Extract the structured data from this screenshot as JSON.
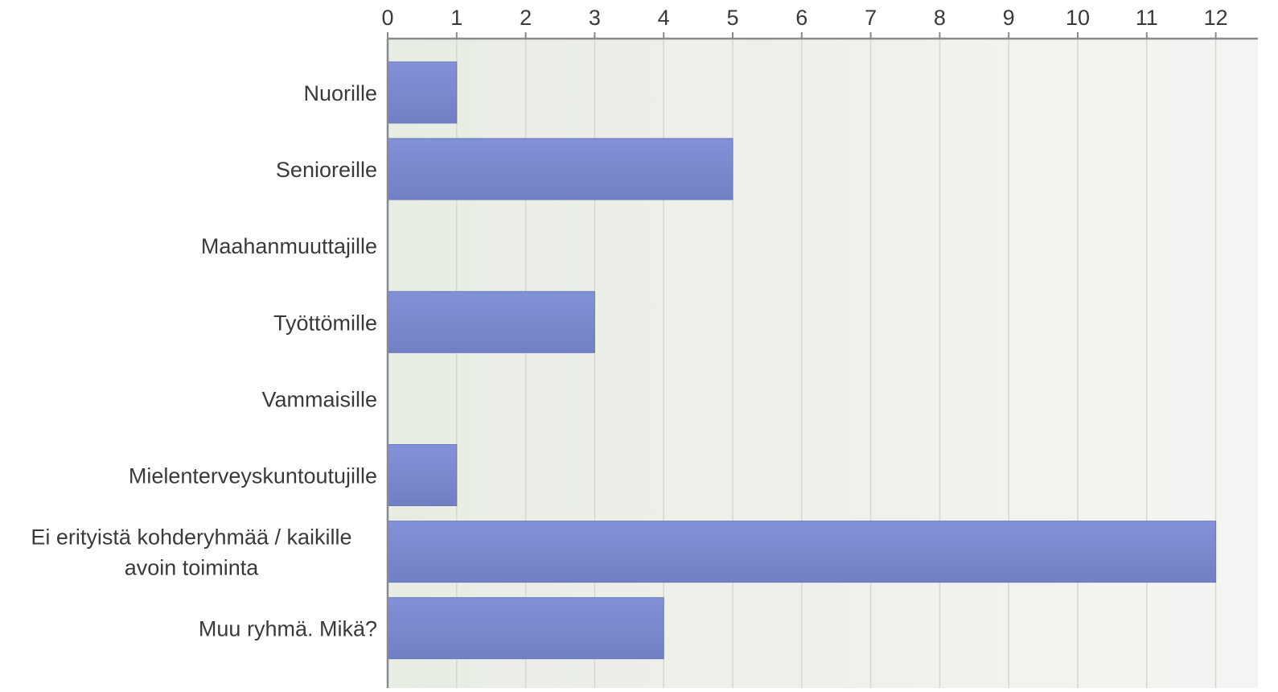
{
  "chart_data": {
    "type": "bar",
    "orientation": "horizontal",
    "title": "",
    "xlabel": "",
    "ylabel": "",
    "xlim": [
      0,
      12
    ],
    "x_ticks": [
      "0",
      "1",
      "2",
      "3",
      "4",
      "5",
      "6",
      "7",
      "8",
      "9",
      "10",
      "11",
      "12"
    ],
    "x_axis_position": "top",
    "grid": true,
    "legend": "none",
    "categories": [
      "Nuorille",
      "Senioreille",
      "Maahanmuuttajille",
      "Työttömille",
      "Vammaisille",
      "Mielenterveyskuntoutujille",
      "Ei erityistä kohderyhmää / kaikille avoin toiminta",
      "Muu ryhmä. Mikä?"
    ],
    "category_lines": [
      [
        "Nuorille"
      ],
      [
        "Senioreille"
      ],
      [
        "Maahanmuuttajille"
      ],
      [
        "Työttömille"
      ],
      [
        "Vammaisille"
      ],
      [
        "Mielenterveyskuntoutujille"
      ],
      [
        "Ei erityistä kohderyhmää / kaikille",
        "avoin toiminta"
      ],
      [
        "Muu ryhmä. Mikä?"
      ]
    ],
    "values": [
      1,
      5,
      0,
      3,
      0,
      1,
      12,
      4
    ],
    "colors": {
      "bar_top": "#8391d8",
      "bar_bottom": "#717fc4",
      "bar_edge": "#6a78bb",
      "plot_bg_left": "#e8ede4",
      "plot_bg_right": "#f4f5f2",
      "grid": "#d4d8d0",
      "axis": "#8a8a8a",
      "text": "#3a3a3a"
    }
  }
}
